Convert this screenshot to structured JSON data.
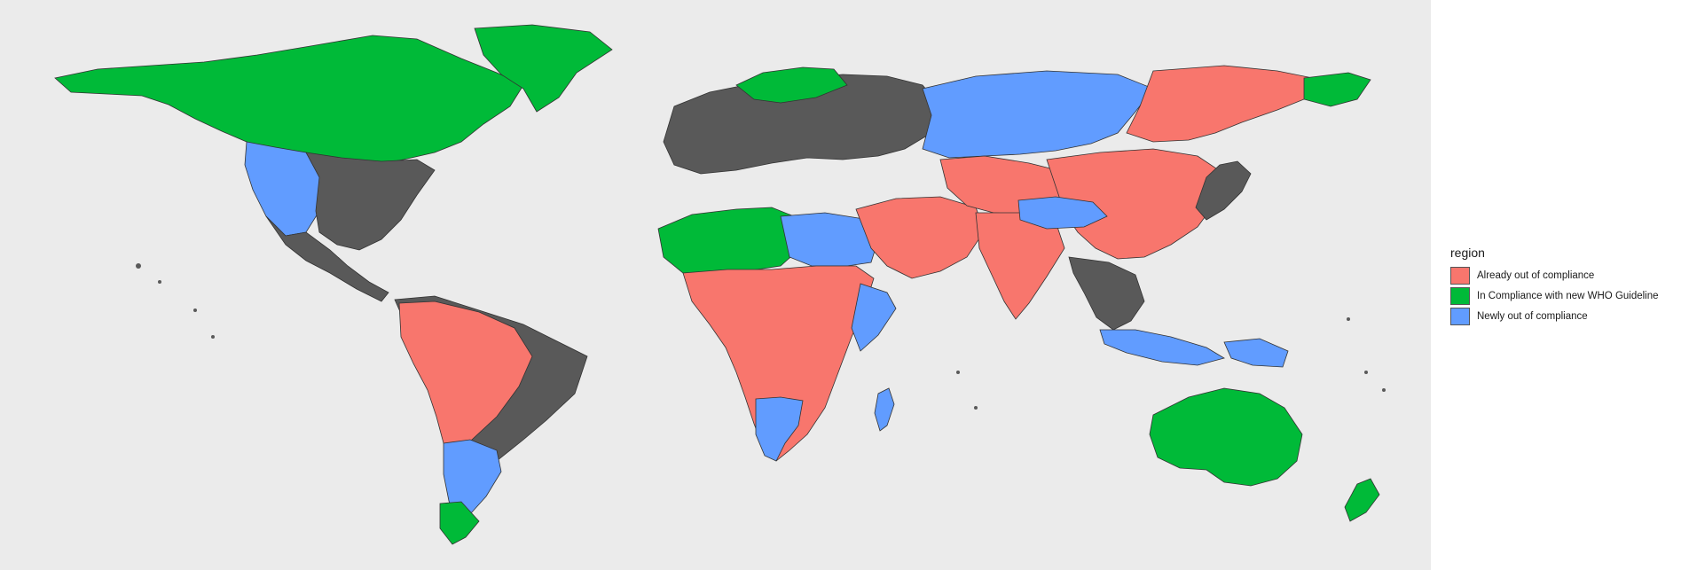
{
  "colors": {
    "panel": "#ebebeb",
    "land_nodata": "#595959",
    "boundary": "#333333",
    "already_out": "#f8766d",
    "in_compliance": "#00ba38",
    "newly_out": "#619cff"
  },
  "legend": {
    "title": "region",
    "items": [
      {
        "label": "Already out of compliance",
        "color": "#f8766d"
      },
      {
        "label": "In Compliance with new WHO Guideline",
        "color": "#00ba38"
      },
      {
        "label": "Newly out of compliance",
        "color": "#619cff"
      }
    ]
  },
  "regions": [
    {
      "name": "north-america",
      "category": "In Compliance with new WHO Guideline"
    },
    {
      "name": "greenland",
      "category": "In Compliance with new WHO Guideline"
    },
    {
      "name": "us-west",
      "category": "Newly out of compliance"
    },
    {
      "name": "us-east",
      "category": "no data"
    },
    {
      "name": "mexico-central-america",
      "category": "no data"
    },
    {
      "name": "south-america-east",
      "category": "no data"
    },
    {
      "name": "south-america-interior",
      "category": "Already out of compliance"
    },
    {
      "name": "argentina-chile",
      "category": "Newly out of compliance"
    },
    {
      "name": "patagonia",
      "category": "In Compliance with new WHO Guideline"
    },
    {
      "name": "europe",
      "category": "no data"
    },
    {
      "name": "scandinavia",
      "category": "In Compliance with new WHO Guideline"
    },
    {
      "name": "russia",
      "category": "Newly out of compliance"
    },
    {
      "name": "siberia-east",
      "category": "Already out of compliance"
    },
    {
      "name": "chukotka",
      "category": "In Compliance with new WHO Guideline"
    },
    {
      "name": "north-africa",
      "category": "In Compliance with new WHO Guideline"
    },
    {
      "name": "libya-egypt",
      "category": "Newly out of compliance"
    },
    {
      "name": "sub-saharan-africa",
      "category": "Already out of compliance"
    },
    {
      "name": "horn-of-africa",
      "category": "Newly out of compliance"
    },
    {
      "name": "southern-africa",
      "category": "Newly out of compliance"
    },
    {
      "name": "madagascar",
      "category": "Newly out of compliance"
    },
    {
      "name": "middle-east",
      "category": "Already out of compliance"
    },
    {
      "name": "central-asia",
      "category": "Already out of compliance"
    },
    {
      "name": "india",
      "category": "Already out of compliance"
    },
    {
      "name": "china",
      "category": "Already out of compliance"
    },
    {
      "name": "mongolia",
      "category": "Newly out of compliance"
    },
    {
      "name": "southeast-asia",
      "category": "no data"
    },
    {
      "name": "japan",
      "category": "no data"
    },
    {
      "name": "indonesia",
      "category": "Newly out of compliance"
    },
    {
      "name": "new-guinea",
      "category": "Newly out of compliance"
    },
    {
      "name": "australia",
      "category": "In Compliance with new WHO Guideline"
    },
    {
      "name": "new-zealand",
      "category": "In Compliance with new WHO Guideline"
    }
  ]
}
